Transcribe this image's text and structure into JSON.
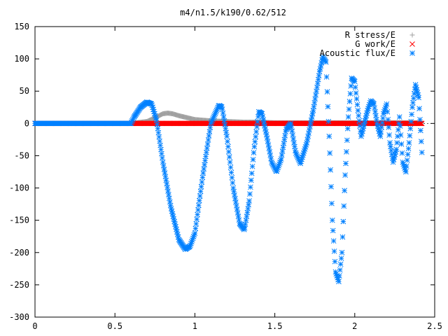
{
  "chart_data": {
    "type": "scatter",
    "title": "m4/n1.5/k190/0.62/512",
    "xlabel": "",
    "ylabel": "",
    "xlim": [
      0,
      2.5
    ],
    "ylim": [
      -300,
      150
    ],
    "x_ticks": [
      "0",
      "0.5",
      "1",
      "1.5",
      "2",
      "2.5"
    ],
    "x_tick_values": [
      0,
      0.5,
      1,
      1.5,
      2,
      2.5
    ],
    "y_ticks": [
      "150",
      "100",
      "50",
      "0",
      "-50",
      "-100",
      "-150",
      "-200",
      "-250",
      "-300"
    ],
    "y_tick_values": [
      150,
      100,
      50,
      0,
      -50,
      -100,
      -150,
      -200,
      -250,
      -300
    ],
    "grid": false,
    "legend_position": "top-right",
    "series": [
      {
        "name": "R stress/E",
        "marker": "plus",
        "color": "#a0a0a0",
        "x": [
          0.0,
          0.6,
          0.7,
          0.76,
          0.8,
          0.83,
          0.86,
          0.9,
          0.95,
          1.0,
          1.05,
          1.1,
          1.2,
          1.3,
          1.4,
          1.5,
          1.6,
          1.7,
          1.8,
          1.9,
          2.0,
          2.1,
          2.2,
          2.3,
          2.42
        ],
        "y": [
          0,
          0,
          3,
          10,
          15,
          16,
          15,
          12,
          9,
          6,
          5,
          4,
          3,
          2,
          2,
          1,
          1,
          1,
          1,
          1,
          1,
          1,
          1,
          1,
          1
        ]
      },
      {
        "name": "G work/E",
        "marker": "cross",
        "color": "#ff0000",
        "x": [
          0.0,
          0.3,
          0.6,
          0.62,
          1.0,
          1.5,
          2.0,
          2.42
        ],
        "y": [
          0,
          0,
          0,
          0,
          0,
          0,
          0,
          0
        ]
      },
      {
        "name": "Acoustic flux/E",
        "marker": "star",
        "color": "#0080ff",
        "x": [
          0.0,
          0.6,
          0.62,
          0.66,
          0.7,
          0.73,
          0.76,
          0.8,
          0.85,
          0.9,
          0.94,
          0.97,
          1.0,
          1.05,
          1.1,
          1.15,
          1.17,
          1.2,
          1.24,
          1.28,
          1.31,
          1.34,
          1.37,
          1.4,
          1.42,
          1.45,
          1.48,
          1.51,
          1.54,
          1.57,
          1.6,
          1.63,
          1.66,
          1.7,
          1.74,
          1.78,
          1.8,
          1.82,
          1.84,
          1.86,
          1.88,
          1.9,
          1.92,
          1.94,
          1.96,
          1.98,
          2.0,
          2.02,
          2.04,
          2.06,
          2.08,
          2.1,
          2.12,
          2.14,
          2.16,
          2.18,
          2.2,
          2.22,
          2.24,
          2.26,
          2.28,
          2.3,
          2.32,
          2.34,
          2.36,
          2.38,
          2.4,
          2.42
        ],
        "y": [
          0,
          0,
          10,
          25,
          33,
          30,
          5,
          -60,
          -130,
          -180,
          -195,
          -190,
          -170,
          -80,
          0,
          28,
          25,
          -20,
          -100,
          -155,
          -165,
          -120,
          -40,
          18,
          15,
          -20,
          -60,
          -75,
          -55,
          -10,
          0,
          -45,
          -62,
          -30,
          20,
          80,
          103,
          95,
          -20,
          -150,
          -230,
          -245,
          -200,
          -80,
          10,
          70,
          65,
          20,
          -20,
          0,
          20,
          35,
          30,
          0,
          -20,
          15,
          30,
          -30,
          -60,
          -40,
          10,
          -60,
          -75,
          -30,
          25,
          60,
          40,
          -45
        ]
      }
    ]
  }
}
